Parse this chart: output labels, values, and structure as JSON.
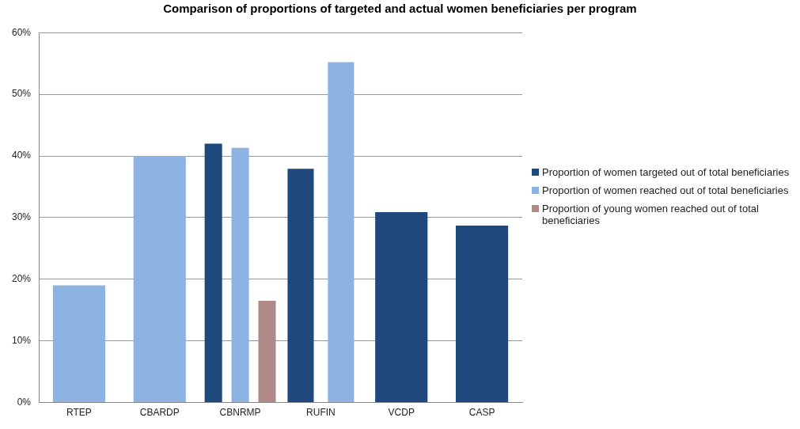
{
  "chart_data": {
    "type": "bar",
    "title": "Comparison of proportions of targeted and actual women beneficiaries per program",
    "categories": [
      "RTEP",
      "CBARDP",
      "CBNRMP",
      "RUFIN",
      "VCDP",
      "CASP"
    ],
    "series": [
      {
        "name": "Proportion of women targeted out of total beneficiaries",
        "color": "#1f497d",
        "values": [
          null,
          null,
          42.0,
          37.9,
          30.9,
          28.7
        ]
      },
      {
        "name": "Proportion of women reached out of total beneficiaries",
        "color": "#8db3e2",
        "values": [
          19.0,
          40.0,
          41.3,
          55.2,
          null,
          null
        ]
      },
      {
        "name": "Proportion of young women reached out of total beneficiaries",
        "color": "#b08a88",
        "values": [
          null,
          null,
          16.5,
          null,
          null,
          null
        ]
      }
    ],
    "ylim": [
      0,
      60
    ],
    "yticks": [
      {
        "value": 0,
        "label": "0%"
      },
      {
        "value": 10,
        "label": "10%"
      },
      {
        "value": 20,
        "label": "20%"
      },
      {
        "value": 30,
        "label": "30%"
      },
      {
        "value": 40,
        "label": "40%"
      },
      {
        "value": 50,
        "label": "50%"
      },
      {
        "value": 60,
        "label": "60%"
      }
    ],
    "grid": "y",
    "legend": "right"
  }
}
